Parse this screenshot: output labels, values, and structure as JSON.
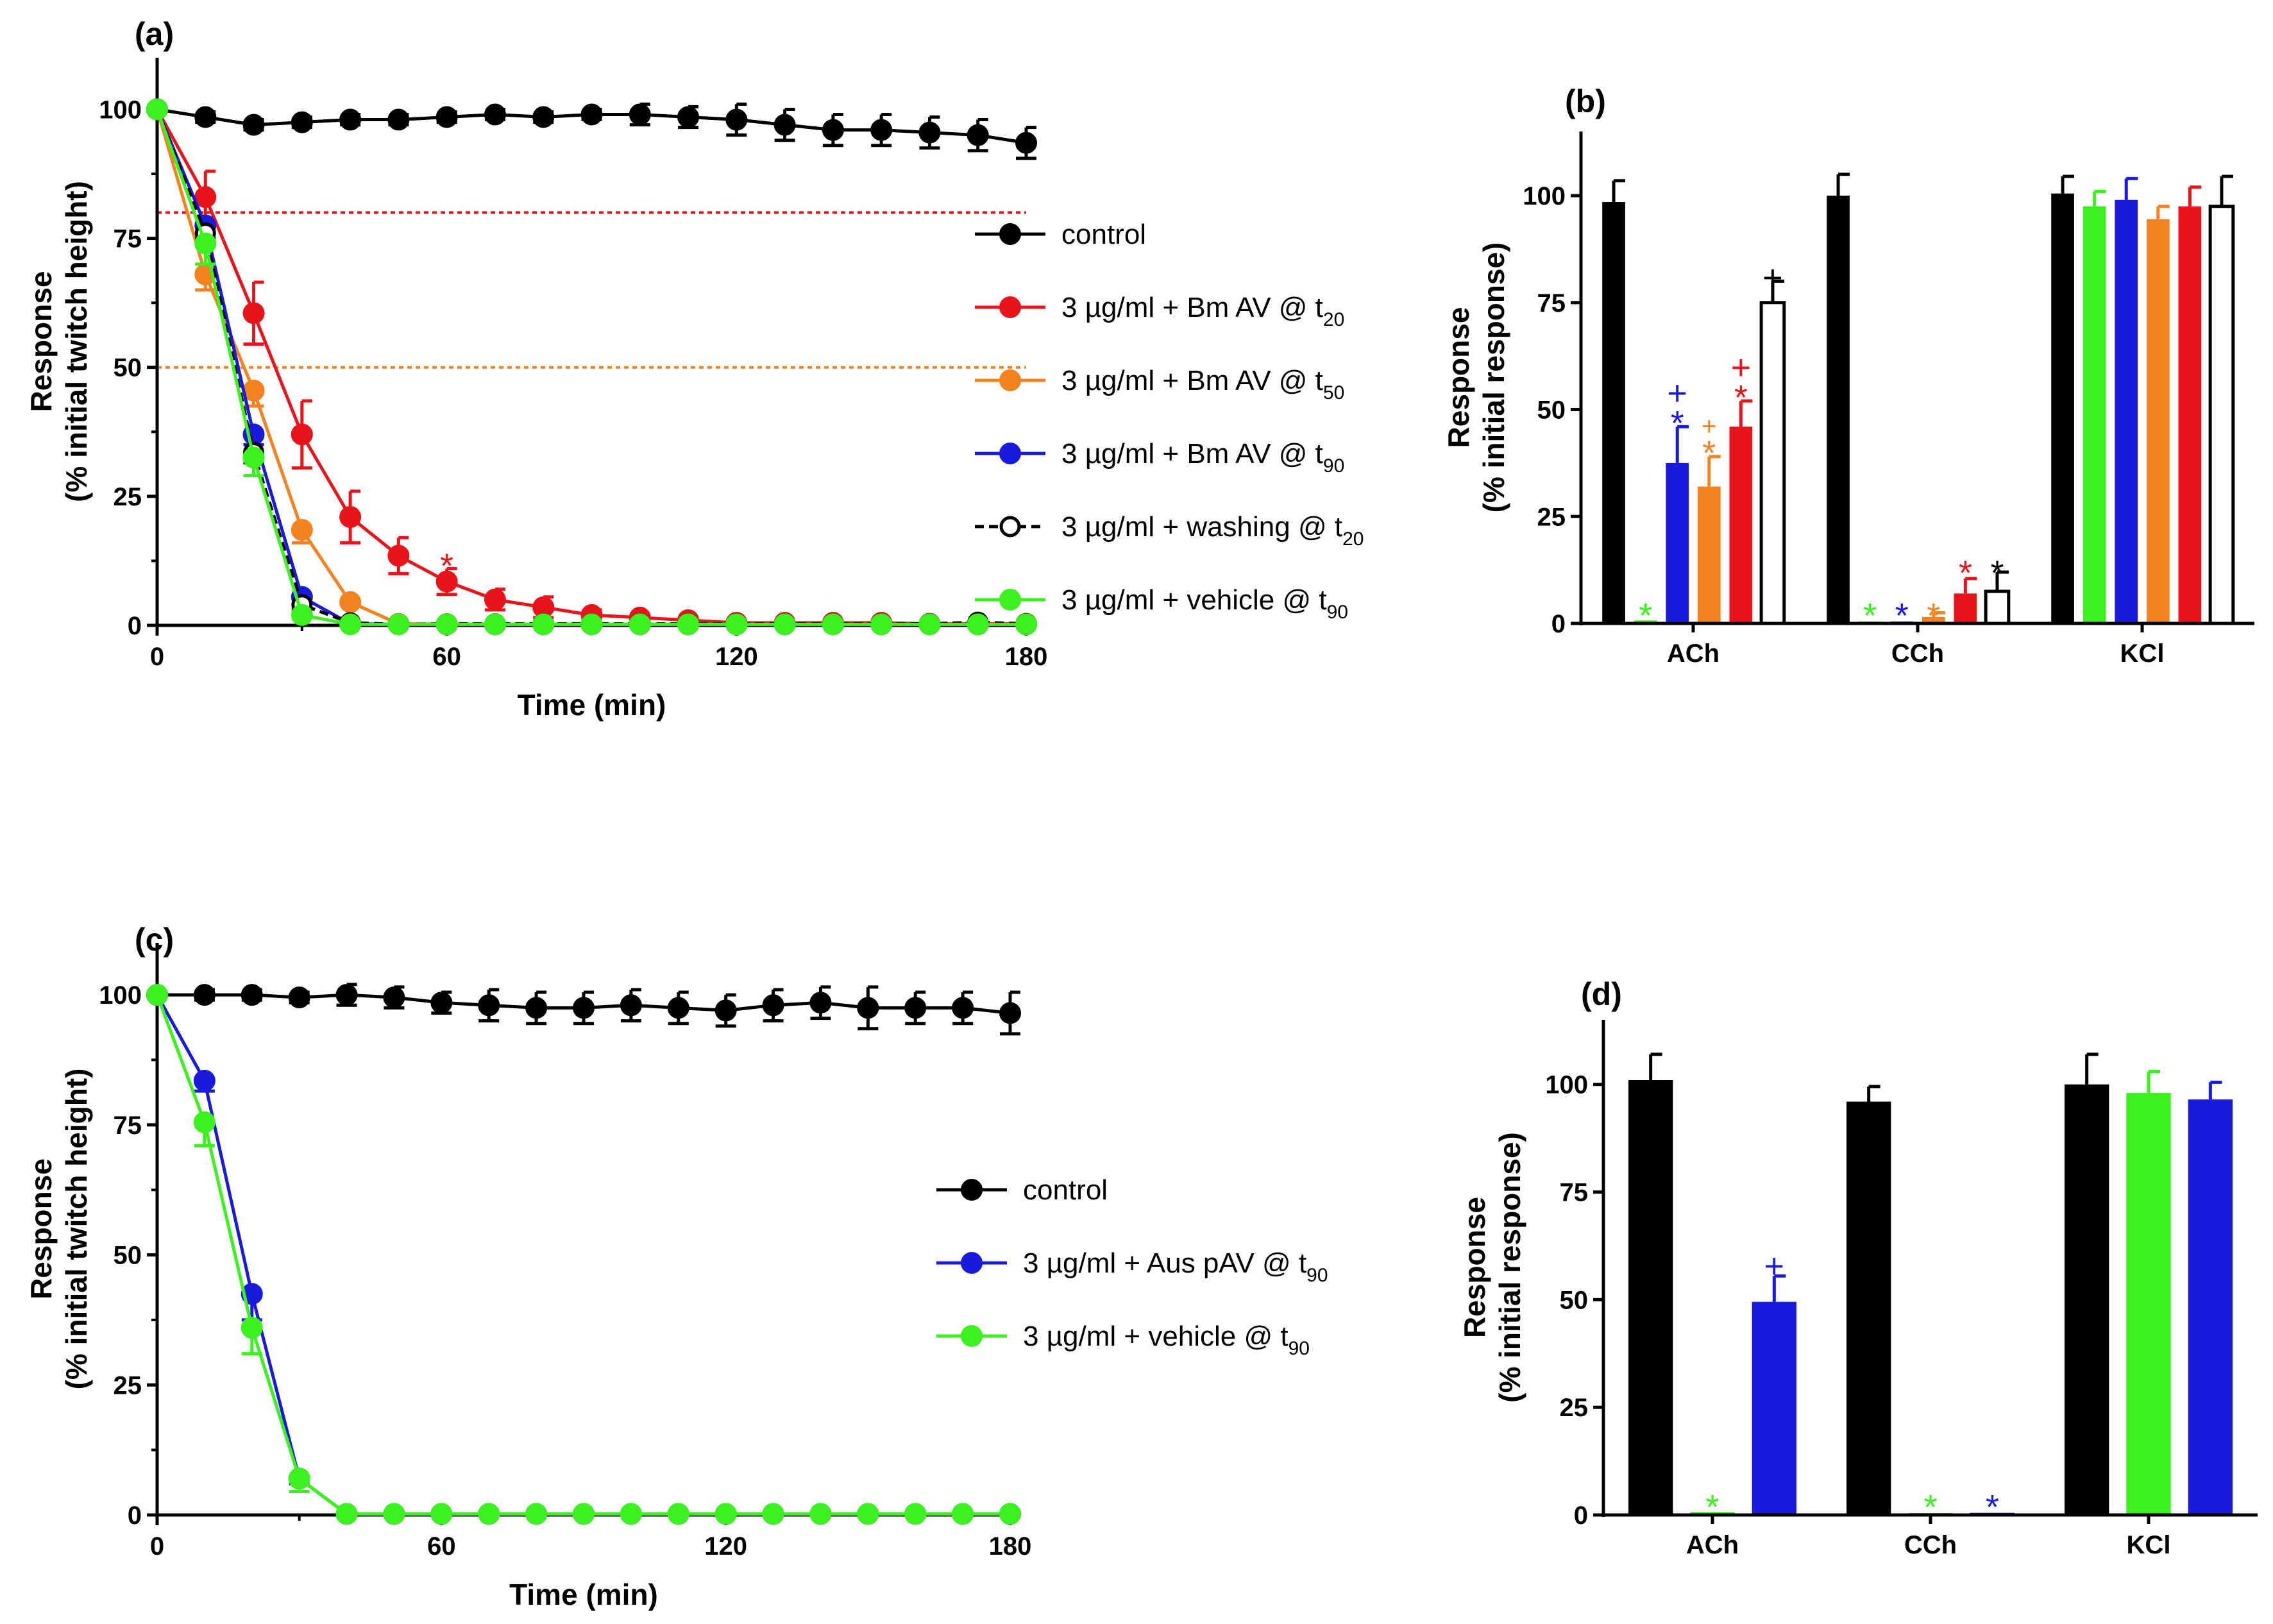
{
  "figure": {
    "panels": [
      "(a)",
      "(b)",
      "(c)",
      "(d)"
    ]
  },
  "chart_data": [
    {
      "id": "a",
      "type": "line",
      "panel_label": "(a)",
      "title": "",
      "xlabel": "Time (min)",
      "ylabel": [
        "Response",
        "(% initial twitch height)"
      ],
      "xlim": [
        0,
        180
      ],
      "ylim": [
        0,
        110
      ],
      "xticks": [
        0,
        60,
        120,
        180
      ],
      "yticks": [
        0,
        25,
        50,
        75,
        100
      ],
      "legend_position": "right",
      "reference_lines": [
        {
          "y": 80,
          "color": "#e8141b"
        },
        {
          "y": 50,
          "color": "#f58220"
        }
      ],
      "series": [
        {
          "name": "control",
          "label": "control",
          "sub": "",
          "color": "#000000",
          "filled": true,
          "dashed": false,
          "x": [
            0,
            10,
            20,
            30,
            40,
            50,
            60,
            70,
            80,
            90,
            100,
            110,
            120,
            130,
            140,
            150,
            160,
            170,
            180
          ],
          "y": [
            100,
            98.5,
            97,
            97.5,
            98,
            98,
            98.5,
            99,
            98.5,
            99,
            99,
            98.5,
            98,
            97,
            96,
            96,
            95.5,
            95,
            93.5
          ],
          "err": [
            0,
            1,
            1,
            1,
            1,
            1,
            1,
            1,
            1,
            1,
            2,
            2,
            3,
            3,
            3,
            3,
            3,
            3,
            3
          ]
        },
        {
          "name": "3 µg/ml + Bm AV @ t20",
          "label": "3 µg/ml + Bm AV @ t",
          "sub": "20",
          "color": "#e8141b",
          "filled": true,
          "dashed": false,
          "x": [
            0,
            10,
            20,
            30,
            40,
            50,
            60,
            70,
            80,
            90,
            100,
            110,
            120,
            130,
            140,
            150,
            160,
            170,
            180
          ],
          "y": [
            100,
            83,
            60.5,
            37,
            21,
            13.5,
            8.5,
            5,
            3.5,
            2,
            1.5,
            1,
            0.5,
            0.5,
            0.5,
            0.5,
            0.3,
            0.3,
            0.3
          ],
          "err": [
            0,
            5,
            6,
            6.5,
            5,
            3.5,
            2.5,
            2,
            2,
            1,
            0.5,
            0.3,
            0.3,
            0.3,
            0.3,
            0.3,
            0.3,
            0.3,
            0.3
          ]
        },
        {
          "name": "3 µg/ml + Bm AV @ t50",
          "label": "3 µg/ml + Bm AV @ t",
          "sub": "50",
          "color": "#f58220",
          "filled": true,
          "dashed": false,
          "x": [
            0,
            10,
            20,
            30,
            40,
            50,
            60,
            70,
            80,
            90,
            100,
            110,
            120,
            130,
            140,
            150,
            160,
            170,
            180
          ],
          "y": [
            100,
            68,
            45.5,
            18.5,
            4.5,
            0.3,
            0.2,
            0.2,
            0.2,
            0.2,
            0.2,
            0.2,
            0.2,
            0.2,
            0.2,
            0.2,
            0.2,
            0.2,
            0.2
          ],
          "err": [
            0,
            3,
            3,
            2.5,
            0.5,
            0,
            0,
            0,
            0,
            0,
            0,
            0,
            0,
            0,
            0,
            0,
            0,
            0,
            0
          ]
        },
        {
          "name": "3 µg/ml + Bm AV @ t90",
          "label": "3 µg/ml + Bm AV @ t",
          "sub": "90",
          "color": "#1a1adb",
          "filled": true,
          "dashed": false,
          "x": [
            0,
            10,
            20,
            30,
            40,
            50,
            60,
            70,
            80,
            90,
            100,
            110,
            120,
            130,
            140,
            150,
            160,
            170,
            180
          ],
          "y": [
            100,
            77.5,
            37,
            5.5,
            0.3,
            0.2,
            0.2,
            0.2,
            0.2,
            0.2,
            0.2,
            0.2,
            0.2,
            0.2,
            0.2,
            0.2,
            0.2,
            0.2,
            0.2
          ],
          "err": [
            0,
            1.5,
            2,
            2.5,
            0.3,
            0,
            0,
            0,
            0,
            0,
            0,
            0,
            0,
            0,
            0,
            0,
            0,
            0,
            0
          ]
        },
        {
          "name": "3 µg/ml + washing @ t20",
          "label": "3 µg/ml + washing @ t",
          "sub": "20",
          "color": "#000000",
          "filled": false,
          "dashed": true,
          "x": [
            0,
            10,
            20,
            30,
            40,
            50,
            60,
            70,
            80,
            90,
            100,
            110,
            120,
            130,
            140,
            150,
            160,
            170,
            180
          ],
          "y": [
            100,
            76,
            33.5,
            4,
            0.5,
            0.2,
            0.3,
            0.3,
            0.3,
            0.3,
            0.3,
            0.3,
            0.3,
            0.3,
            0.3,
            0.3,
            0.3,
            0.6,
            0.3
          ],
          "err": [
            0,
            1,
            2,
            2,
            0.3,
            0,
            0,
            0,
            0,
            0,
            0,
            0,
            0,
            0,
            0,
            0,
            0,
            0,
            0
          ]
        },
        {
          "name": "3 µg/ml + vehicle @ t90",
          "label": "3 µg/ml + vehicle @ t",
          "sub": "90",
          "color": "#3df020",
          "filled": true,
          "dashed": false,
          "x": [
            0,
            10,
            20,
            30,
            40,
            50,
            60,
            70,
            80,
            90,
            100,
            110,
            120,
            130,
            140,
            150,
            160,
            170,
            180
          ],
          "y": [
            100,
            74,
            32.5,
            2,
            0.2,
            0.2,
            0.2,
            0.2,
            0.2,
            0.2,
            0.2,
            0.2,
            0.2,
            0.2,
            0.2,
            0.2,
            0.2,
            0.2,
            0.2
          ],
          "err": [
            0,
            4,
            3.5,
            0.5,
            0,
            0,
            0,
            0,
            0,
            0,
            0,
            0,
            0,
            0,
            0,
            0,
            0,
            0,
            0
          ]
        }
      ],
      "annotations": [
        {
          "x": 60,
          "y": 13,
          "text": "*",
          "color": "#e8141b"
        }
      ]
    },
    {
      "id": "b",
      "type": "bar",
      "panel_label": "(b)",
      "title": "",
      "xlabel": "",
      "ylabel": [
        "Response",
        "(% initial response)"
      ],
      "ylim": [
        0,
        115
      ],
      "yticks": [
        0,
        25,
        50,
        75,
        100
      ],
      "categories": [
        "ACh",
        "CCh",
        "KCl"
      ],
      "series": [
        {
          "name": "control",
          "color": "#000000",
          "filled": true,
          "values": [
            98.5,
            100,
            100.5
          ],
          "err": [
            5,
            5,
            4
          ]
        },
        {
          "name": "vehicle @ t90",
          "color": "#3df020",
          "filled": true,
          "values": [
            0.7,
            0.4,
            97.5
          ],
          "err": [
            0,
            0,
            3.5
          ]
        },
        {
          "name": "Bm AV @ t90",
          "color": "#1a1adb",
          "filled": true,
          "values": [
            37.5,
            0.2,
            99
          ],
          "err": [
            8.5,
            0,
            5
          ]
        },
        {
          "name": "Bm AV @ t50",
          "color": "#f58220",
          "filled": true,
          "values": [
            32,
            1.5,
            94.5
          ],
          "err": [
            7,
            1,
            3
          ]
        },
        {
          "name": "Bm AV @ t20",
          "color": "#e8141b",
          "filled": true,
          "values": [
            46,
            7,
            97.5
          ],
          "err": [
            6,
            3.5,
            4.5
          ]
        },
        {
          "name": "washing @ t20",
          "color": "#000000",
          "filled": false,
          "values": [
            75,
            7.5,
            97.5
          ],
          "err": [
            5,
            4.5,
            7
          ]
        }
      ],
      "annotations": [
        {
          "category": 0,
          "series": 1,
          "text": "*",
          "color": "#3df020",
          "y": 3
        },
        {
          "category": 0,
          "series": 2,
          "text": "*",
          "color": "#1a1adb",
          "y": 48
        },
        {
          "category": 0,
          "series": 2,
          "text": "+",
          "color": "#1a1adb",
          "y": 55
        },
        {
          "category": 0,
          "series": 3,
          "text": "*",
          "color": "#f58220",
          "y": 41
        },
        {
          "category": 0,
          "series": 3,
          "text": "+",
          "color": "#f58220",
          "y": 48,
          "small": true
        },
        {
          "category": 0,
          "series": 4,
          "text": "*",
          "color": "#e8141b",
          "y": 54
        },
        {
          "category": 0,
          "series": 4,
          "text": "+",
          "color": "#e8141b",
          "y": 61
        },
        {
          "category": 0,
          "series": 5,
          "text": "+",
          "color": "#000000",
          "y": 82
        },
        {
          "category": 1,
          "series": 1,
          "text": "*",
          "color": "#3df020",
          "y": 3
        },
        {
          "category": 1,
          "series": 2,
          "text": "*",
          "color": "#1a1adb",
          "y": 3
        },
        {
          "category": 1,
          "series": 3,
          "text": "*",
          "color": "#f58220",
          "y": 3
        },
        {
          "category": 1,
          "series": 4,
          "text": "*",
          "color": "#e8141b",
          "y": 13
        },
        {
          "category": 1,
          "series": 5,
          "text": "*",
          "color": "#000000",
          "y": 13
        }
      ]
    },
    {
      "id": "c",
      "type": "line",
      "panel_label": "(c)",
      "title": "",
      "xlabel": "Time (min)",
      "ylabel": [
        "Response",
        "(% initial twitch height)"
      ],
      "xlim": [
        0,
        180
      ],
      "ylim": [
        0,
        110
      ],
      "xticks": [
        0,
        60,
        120,
        180
      ],
      "yticks": [
        0,
        25,
        50,
        75,
        100
      ],
      "legend_position": "right",
      "reference_lines": [],
      "series": [
        {
          "name": "control",
          "label": "control",
          "sub": "",
          "color": "#000000",
          "filled": true,
          "dashed": false,
          "x": [
            0,
            10,
            20,
            30,
            40,
            50,
            60,
            70,
            80,
            90,
            100,
            110,
            120,
            130,
            140,
            150,
            160,
            170,
            180
          ],
          "y": [
            100,
            100,
            100,
            99.5,
            100,
            99.5,
            98.5,
            98,
            97.5,
            97.5,
            98,
            97.5,
            97,
            98,
            98.5,
            97.5,
            97.5,
            97.5,
            96.5
          ],
          "err": [
            0,
            1,
            1,
            1,
            2,
            2,
            2,
            3,
            3,
            3,
            3,
            3,
            3,
            3,
            3,
            4,
            3,
            3,
            4
          ]
        },
        {
          "name": "3 µg/ml + Aus pAV @ t90",
          "label": "3 µg/ml + Aus pAV @ t",
          "sub": "90",
          "color": "#1a1adb",
          "filled": true,
          "dashed": false,
          "x": [
            0,
            10,
            20,
            30,
            40,
            50,
            60,
            70,
            80,
            90,
            100,
            110,
            120,
            130,
            140,
            150,
            160,
            170,
            180
          ],
          "y": [
            100,
            83.5,
            42.5,
            7,
            0.2,
            0.2,
            0.2,
            0.2,
            0.2,
            0.2,
            0.2,
            0.2,
            0.2,
            0.2,
            0.2,
            0.2,
            0.2,
            0.2,
            0.2
          ],
          "err": [
            0,
            2,
            5,
            1,
            0,
            0,
            0,
            0,
            0,
            0,
            0,
            0,
            0,
            0,
            0,
            0,
            0,
            0,
            0
          ]
        },
        {
          "name": "3 µg/ml + vehicle @ t90",
          "label": "3 µg/ml + vehicle @ t",
          "sub": "90",
          "color": "#3df020",
          "filled": true,
          "dashed": false,
          "x": [
            0,
            10,
            20,
            30,
            40,
            50,
            60,
            70,
            80,
            90,
            100,
            110,
            120,
            130,
            140,
            150,
            160,
            170,
            180
          ],
          "y": [
            100,
            75.5,
            36,
            7,
            0.2,
            0.2,
            0.2,
            0.2,
            0.2,
            0.2,
            0.2,
            0.2,
            0.2,
            0.2,
            0.2,
            0.2,
            0.2,
            0.2,
            0.2
          ],
          "err": [
            0,
            4.5,
            5,
            2.5,
            0,
            0,
            0,
            0,
            0,
            0,
            0,
            0,
            0,
            0,
            0,
            0,
            0,
            0,
            0
          ]
        }
      ],
      "annotations": []
    },
    {
      "id": "d",
      "type": "bar",
      "panel_label": "(d)",
      "title": "",
      "xlabel": "",
      "ylabel": [
        "Response",
        "(% initial response)"
      ],
      "ylim": [
        0,
        115
      ],
      "yticks": [
        0,
        25,
        50,
        75,
        100
      ],
      "categories": [
        "ACh",
        "CCh",
        "KCl"
      ],
      "series": [
        {
          "name": "control",
          "color": "#000000",
          "filled": true,
          "values": [
            101,
            96,
            100
          ],
          "err": [
            6,
            3.5,
            7
          ]
        },
        {
          "name": "vehicle @ t90",
          "color": "#3df020",
          "filled": true,
          "values": [
            0.7,
            0.2,
            98
          ],
          "err": [
            0,
            0,
            5
          ]
        },
        {
          "name": "Aus pAV @ t90",
          "color": "#1a1adb",
          "filled": true,
          "values": [
            49.5,
            0.5,
            96.5
          ],
          "err": [
            6,
            0,
            4
          ]
        }
      ],
      "annotations": [
        {
          "category": 0,
          "series": 1,
          "text": "*",
          "color": "#3df020",
          "y": 3
        },
        {
          "category": 0,
          "series": 2,
          "text": "+",
          "color": "#1a1adb",
          "y": 59
        },
        {
          "category": 1,
          "series": 1,
          "text": "*",
          "color": "#3df020",
          "y": 3
        },
        {
          "category": 1,
          "series": 2,
          "text": "*",
          "color": "#1a1adb",
          "y": 3
        }
      ]
    }
  ]
}
